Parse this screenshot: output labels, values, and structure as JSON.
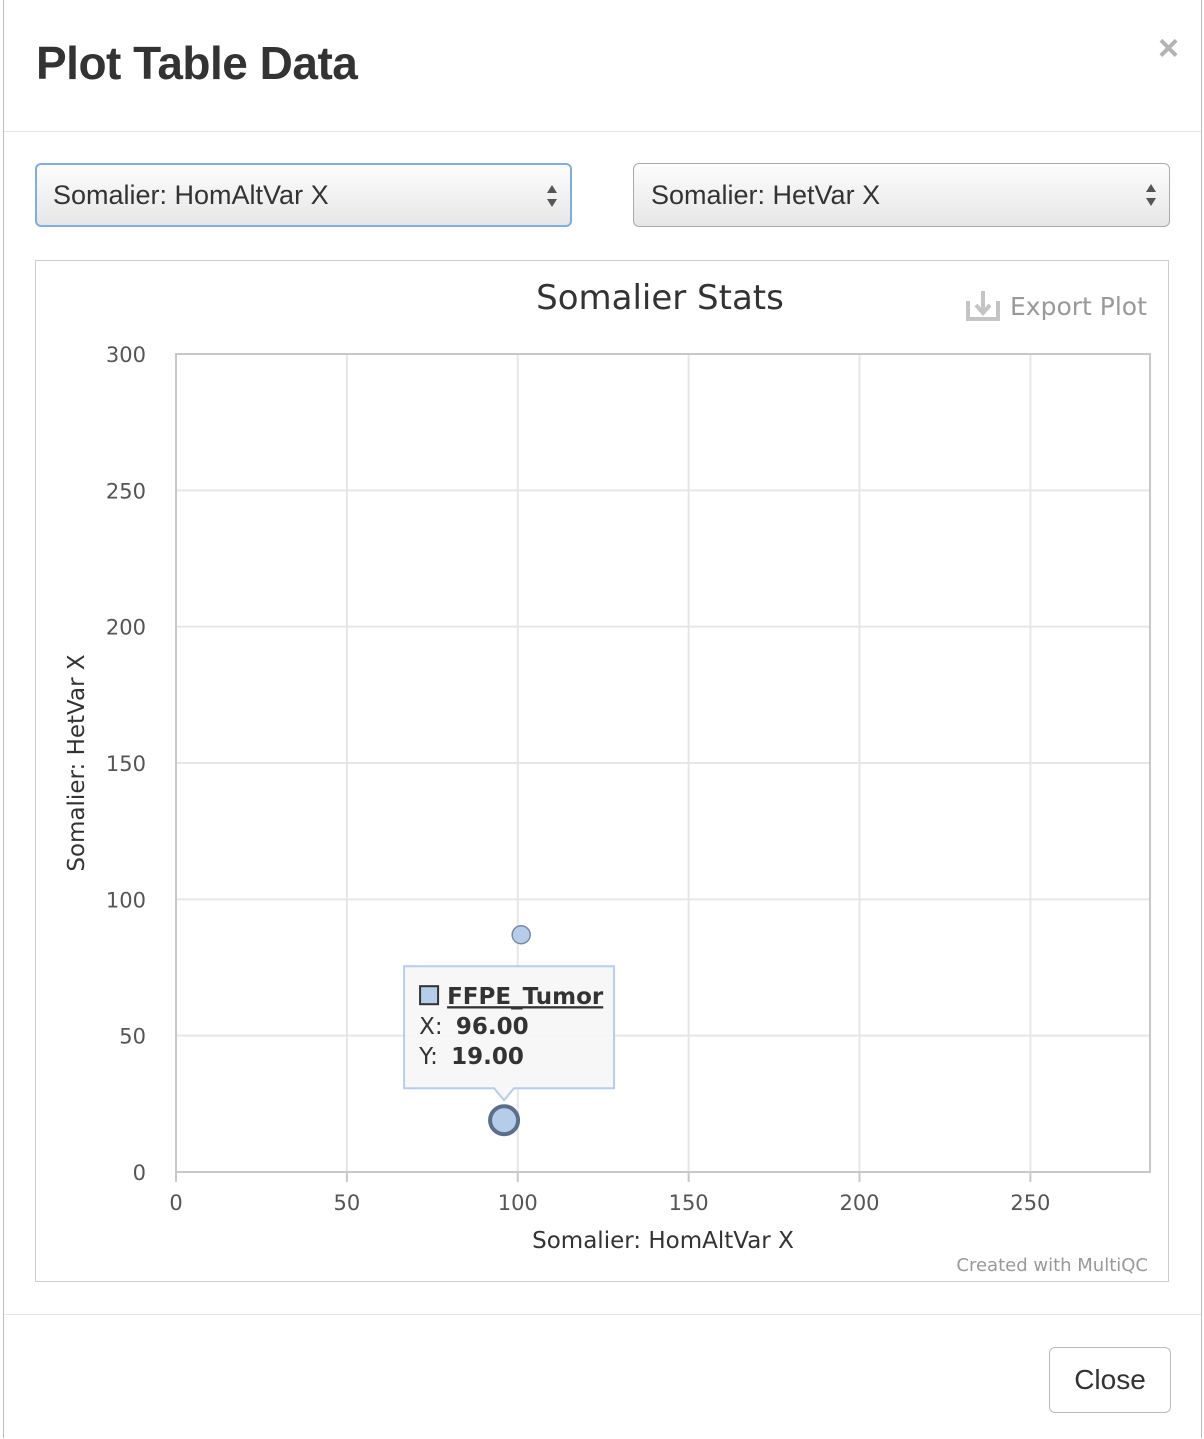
{
  "modal": {
    "title": "Plot Table Data",
    "close_icon": "×",
    "close_button_label": "Close"
  },
  "selects": {
    "x_axis": {
      "selected": "Somalier: HomAltVar X"
    },
    "y_axis": {
      "selected": "Somalier: HetVar X"
    }
  },
  "plot": {
    "export_label": "Export Plot",
    "credit": "Created with MultiQC",
    "tooltip": {
      "sample": "FFPE_Tumor",
      "x_label": "X:",
      "x_value": "96.00",
      "y_label": "Y:",
      "y_value": "19.00"
    }
  },
  "colors": {
    "point_fill": "#b6cdea",
    "point_stroke": "#5b6f8c",
    "grid": "#e6e6e6"
  },
  "chart_data": {
    "type": "scatter",
    "title": "Somalier Stats",
    "xlabel": "Somalier: HomAltVar X",
    "ylabel": "Somalier: HetVar X",
    "xlim": [
      0,
      285
    ],
    "ylim": [
      0,
      300
    ],
    "x_ticks": [
      0,
      50,
      100,
      150,
      200,
      250
    ],
    "y_ticks": [
      0,
      50,
      100,
      150,
      200,
      250,
      300
    ],
    "grid": true,
    "points": [
      {
        "x": 101,
        "y": 87,
        "highlighted": false
      },
      {
        "x": 96,
        "y": 19,
        "highlighted": true
      }
    ]
  }
}
